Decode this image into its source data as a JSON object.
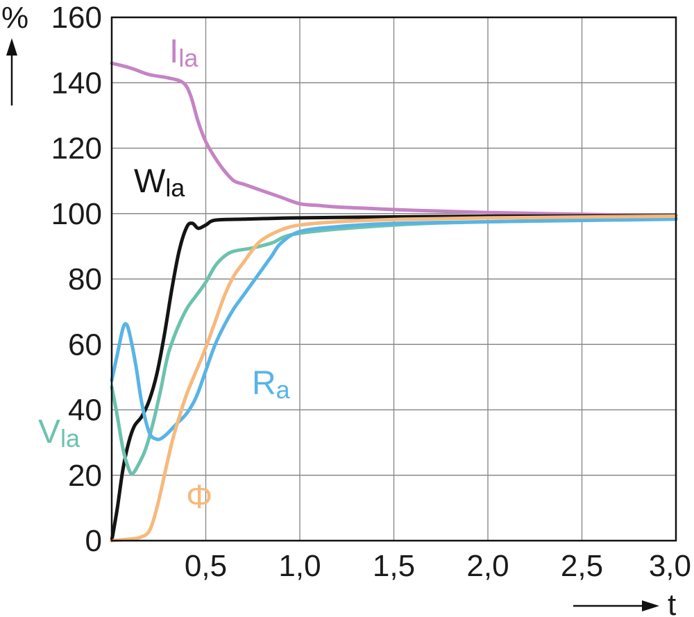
{
  "chart_data": {
    "type": "line",
    "x_tick_labels": [
      "0,5",
      "1,0",
      "1,5",
      "2,0",
      "2,5",
      "3,0"
    ],
    "x_ticks": [
      0.5,
      1.0,
      1.5,
      2.0,
      2.5,
      3.0
    ],
    "y_tick_labels": [
      "0",
      "20",
      "40",
      "60",
      "80",
      "100",
      "120",
      "140",
      "160"
    ],
    "y_ticks": [
      0,
      20,
      40,
      60,
      80,
      100,
      120,
      140,
      160
    ],
    "xlim": [
      0,
      3.0
    ],
    "ylim": [
      0,
      160
    ],
    "xlabel": "t",
    "ylabel": "%",
    "grid": true,
    "series": [
      {
        "name": "I",
        "subscript": "la",
        "color": "#c583c5",
        "points": [
          [
            0,
            146
          ],
          [
            0.1,
            144.5
          ],
          [
            0.2,
            142.5
          ],
          [
            0.3,
            141.5
          ],
          [
            0.38,
            140
          ],
          [
            0.42,
            136
          ],
          [
            0.46,
            128
          ],
          [
            0.5,
            122
          ],
          [
            0.55,
            117
          ],
          [
            0.6,
            113
          ],
          [
            0.65,
            110
          ],
          [
            0.7,
            109
          ],
          [
            0.8,
            107
          ],
          [
            0.9,
            105
          ],
          [
            1.0,
            103
          ],
          [
            1.1,
            102.5
          ],
          [
            1.2,
            102
          ],
          [
            1.4,
            101.5
          ],
          [
            1.6,
            101
          ],
          [
            2.0,
            100.3
          ],
          [
            2.5,
            99.8
          ],
          [
            3.0,
            99.3
          ]
        ]
      },
      {
        "name": "W",
        "subscript": "la",
        "color": "#141414",
        "points": [
          [
            0,
            0
          ],
          [
            0.03,
            10
          ],
          [
            0.06,
            22
          ],
          [
            0.09,
            30
          ],
          [
            0.12,
            35
          ],
          [
            0.16,
            38
          ],
          [
            0.2,
            43
          ],
          [
            0.24,
            51
          ],
          [
            0.28,
            63
          ],
          [
            0.32,
            77
          ],
          [
            0.36,
            89
          ],
          [
            0.4,
            96
          ],
          [
            0.43,
            97
          ],
          [
            0.46,
            95.5
          ],
          [
            0.5,
            96.5
          ],
          [
            0.55,
            98
          ],
          [
            0.7,
            98.3
          ],
          [
            1.0,
            98.7
          ],
          [
            1.5,
            99
          ],
          [
            2.0,
            99.2
          ],
          [
            3.0,
            99.3
          ]
        ]
      },
      {
        "name": "V",
        "subscript": "la",
        "color": "#6cc2ae",
        "points": [
          [
            0,
            47
          ],
          [
            0.03,
            38
          ],
          [
            0.06,
            28
          ],
          [
            0.09,
            22
          ],
          [
            0.11,
            20.5
          ],
          [
            0.14,
            23
          ],
          [
            0.18,
            28
          ],
          [
            0.22,
            36
          ],
          [
            0.26,
            46
          ],
          [
            0.3,
            57
          ],
          [
            0.35,
            65
          ],
          [
            0.4,
            71
          ],
          [
            0.45,
            75
          ],
          [
            0.5,
            79
          ],
          [
            0.55,
            84
          ],
          [
            0.6,
            87
          ],
          [
            0.65,
            88.5
          ],
          [
            0.75,
            89.5
          ],
          [
            0.85,
            91
          ],
          [
            1.0,
            94
          ],
          [
            1.5,
            96.5
          ],
          [
            2.0,
            97.5
          ],
          [
            3.0,
            98.5
          ]
        ]
      },
      {
        "name": "R",
        "subscript": "a",
        "color": "#58b4e6",
        "points": [
          [
            0,
            49
          ],
          [
            0.03,
            57
          ],
          [
            0.06,
            65
          ],
          [
            0.08,
            66
          ],
          [
            0.1,
            62
          ],
          [
            0.13,
            53
          ],
          [
            0.16,
            42
          ],
          [
            0.2,
            33
          ],
          [
            0.24,
            31
          ],
          [
            0.27,
            31.5
          ],
          [
            0.3,
            33
          ],
          [
            0.35,
            36
          ],
          [
            0.4,
            39
          ],
          [
            0.45,
            44
          ],
          [
            0.5,
            52
          ],
          [
            0.55,
            60
          ],
          [
            0.6,
            66
          ],
          [
            0.65,
            71
          ],
          [
            0.7,
            75
          ],
          [
            0.75,
            79
          ],
          [
            0.8,
            83
          ],
          [
            0.85,
            87
          ],
          [
            0.9,
            91
          ],
          [
            1.0,
            94.5
          ],
          [
            1.2,
            96
          ],
          [
            1.5,
            97
          ],
          [
            2.0,
            97.5
          ],
          [
            3.0,
            98.3
          ]
        ]
      },
      {
        "name": "Φ",
        "subscript": "",
        "color": "#f7b97c",
        "points": [
          [
            0,
            0
          ],
          [
            0.1,
            0.5
          ],
          [
            0.15,
            1
          ],
          [
            0.2,
            3
          ],
          [
            0.24,
            10
          ],
          [
            0.28,
            20
          ],
          [
            0.32,
            30
          ],
          [
            0.36,
            38
          ],
          [
            0.4,
            45
          ],
          [
            0.45,
            52
          ],
          [
            0.5,
            59
          ],
          [
            0.55,
            67
          ],
          [
            0.6,
            75
          ],
          [
            0.65,
            81
          ],
          [
            0.7,
            85
          ],
          [
            0.75,
            89
          ],
          [
            0.8,
            92
          ],
          [
            0.9,
            95
          ],
          [
            1.0,
            96.5
          ],
          [
            1.2,
            97.5
          ],
          [
            1.5,
            98.2
          ],
          [
            2.0,
            98.7
          ],
          [
            3.0,
            99.2
          ]
        ]
      }
    ]
  }
}
